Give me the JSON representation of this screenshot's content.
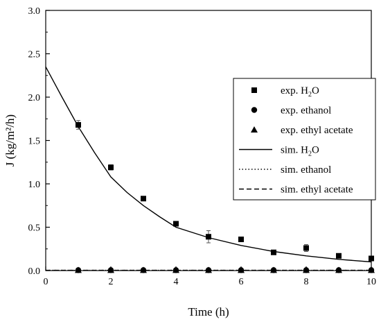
{
  "chart_data": {
    "type": "scatter",
    "title": "",
    "xlabel": "Time (h)",
    "ylabel": "J (kg/m²/h)",
    "xlim": [
      0,
      10
    ],
    "ylim": [
      0,
      3.0
    ],
    "xticks": [
      "0",
      "2",
      "4",
      "6",
      "8",
      "10"
    ],
    "yticks": [
      "0.0",
      "0.5",
      "1.0",
      "1.5",
      "2.0",
      "2.5",
      "3.0"
    ],
    "grid": false,
    "legend_position": "center-right",
    "series": [
      {
        "name": "exp. H2O",
        "label_main": "exp. H",
        "label_sub": "2",
        "label_tail": "O",
        "kind": "markers",
        "marker": "square",
        "points": [
          {
            "x": 1,
            "y": 1.68,
            "err": 0.05
          },
          {
            "x": 2,
            "y": 1.19,
            "err": 0.03
          },
          {
            "x": 3,
            "y": 0.83,
            "err": 0
          },
          {
            "x": 4,
            "y": 0.54,
            "err": 0
          },
          {
            "x": 5,
            "y": 0.39,
            "err": 0.07
          },
          {
            "x": 6,
            "y": 0.36,
            "err": 0
          },
          {
            "x": 7,
            "y": 0.21,
            "err": 0
          },
          {
            "x": 8,
            "y": 0.26,
            "err": 0.04
          },
          {
            "x": 9,
            "y": 0.17,
            "err": 0
          },
          {
            "x": 10,
            "y": 0.14,
            "err": 0
          }
        ]
      },
      {
        "name": "exp. ethanol",
        "kind": "markers",
        "marker": "circle",
        "points": [
          {
            "x": 1,
            "y": 0.005
          },
          {
            "x": 2,
            "y": 0.005
          },
          {
            "x": 3,
            "y": 0.005
          },
          {
            "x": 4,
            "y": 0.005
          },
          {
            "x": 5,
            "y": 0.005
          },
          {
            "x": 6,
            "y": 0.005
          },
          {
            "x": 7,
            "y": 0.005
          },
          {
            "x": 8,
            "y": 0.005
          },
          {
            "x": 9,
            "y": 0.005
          },
          {
            "x": 10,
            "y": 0.005
          }
        ]
      },
      {
        "name": "exp. ethyl acetate",
        "kind": "markers",
        "marker": "triangle",
        "points": [
          {
            "x": 1,
            "y": 0.005
          },
          {
            "x": 2,
            "y": 0.005
          },
          {
            "x": 3,
            "y": 0.005
          },
          {
            "x": 4,
            "y": 0.005
          },
          {
            "x": 5,
            "y": 0.005
          },
          {
            "x": 6,
            "y": 0.005
          },
          {
            "x": 7,
            "y": 0.005
          },
          {
            "x": 8,
            "y": 0.005
          },
          {
            "x": 9,
            "y": 0.005
          },
          {
            "x": 10,
            "y": 0.005
          }
        ]
      },
      {
        "name": "sim. H2O",
        "label_main": "sim. H",
        "label_sub": "2",
        "label_tail": "O",
        "kind": "line",
        "dash": "solid",
        "points": [
          {
            "x": 0,
            "y": 2.35
          },
          {
            "x": 0.5,
            "y": 2.0
          },
          {
            "x": 1,
            "y": 1.66
          },
          {
            "x": 1.5,
            "y": 1.36
          },
          {
            "x": 2,
            "y": 1.08
          },
          {
            "x": 2.5,
            "y": 0.9
          },
          {
            "x": 3,
            "y": 0.75
          },
          {
            "x": 3.5,
            "y": 0.62
          },
          {
            "x": 4,
            "y": 0.5
          },
          {
            "x": 5,
            "y": 0.38
          },
          {
            "x": 6,
            "y": 0.29
          },
          {
            "x": 7,
            "y": 0.22
          },
          {
            "x": 8,
            "y": 0.17
          },
          {
            "x": 9,
            "y": 0.13
          },
          {
            "x": 10,
            "y": 0.1
          }
        ]
      },
      {
        "name": "sim. ethanol",
        "kind": "line",
        "dash": "dotted",
        "points": [
          {
            "x": 0,
            "y": 0.003
          },
          {
            "x": 10,
            "y": 0.003
          }
        ]
      },
      {
        "name": "sim. ethyl acetate",
        "kind": "line",
        "dash": "dashed",
        "points": [
          {
            "x": 0,
            "y": 0.003
          },
          {
            "x": 10,
            "y": 0.003
          }
        ]
      }
    ]
  }
}
